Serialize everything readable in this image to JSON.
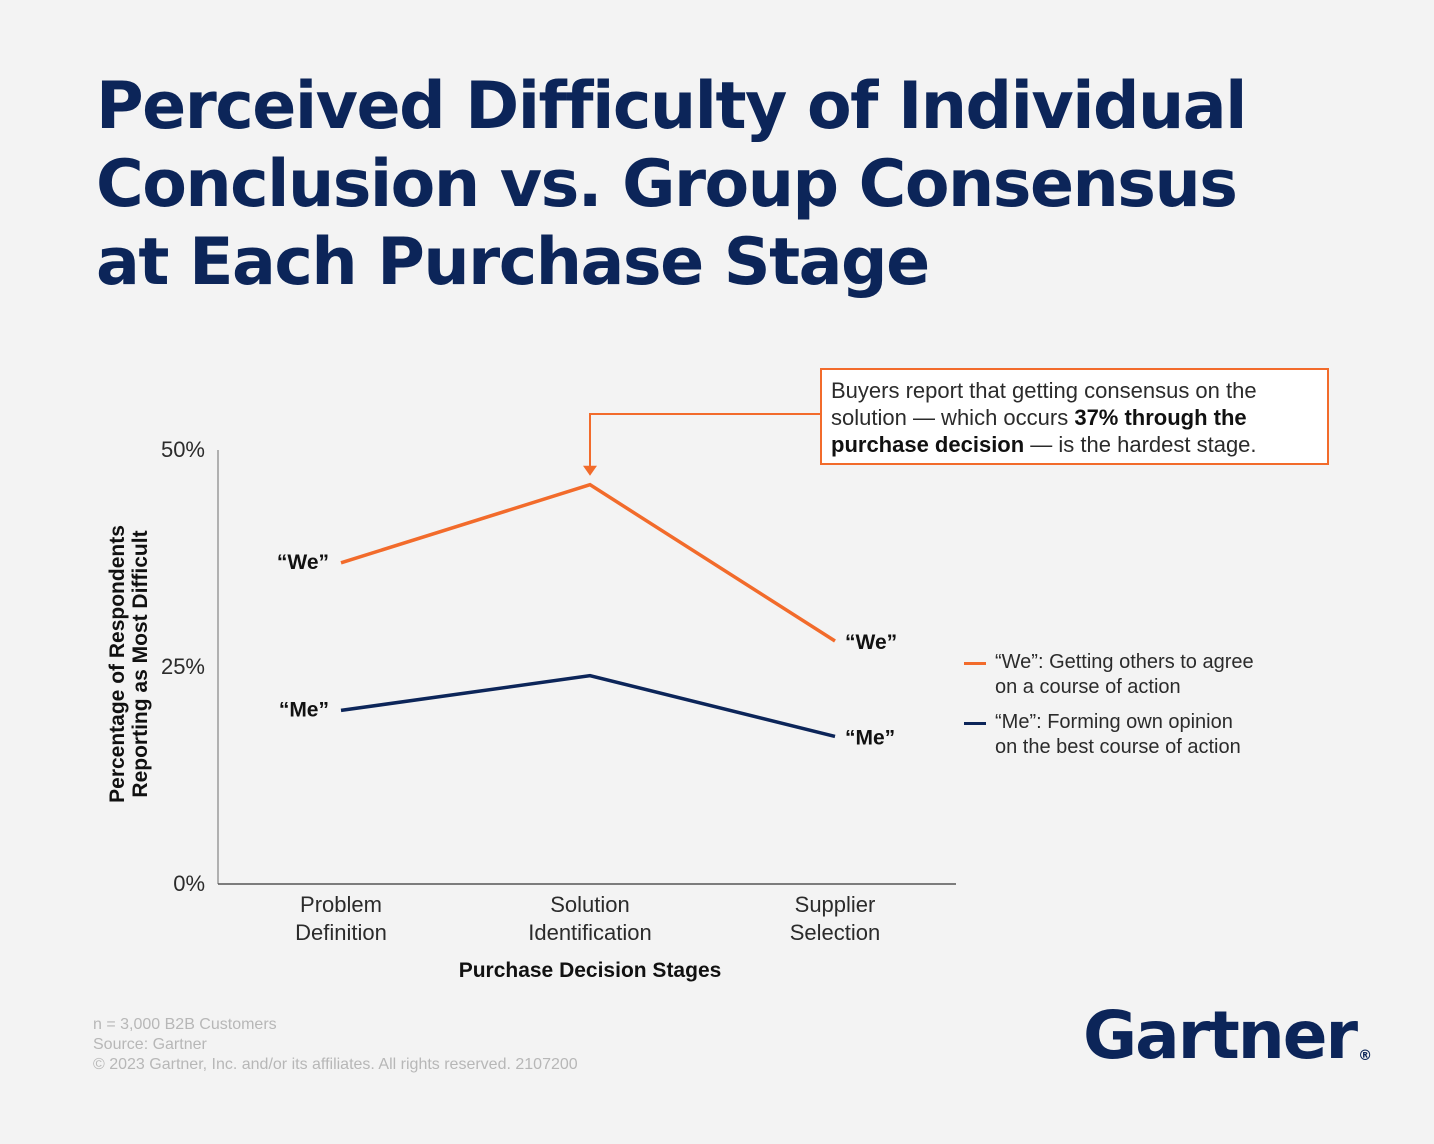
{
  "title_lines": [
    "Perceived Difficulty of Individual",
    "Conclusion vs. Group Consensus",
    "at Each Purchase Stage"
  ],
  "chart_data": {
    "type": "line",
    "title": "Perceived Difficulty of Individual Conclusion vs. Group Consensus at Each Purchase Stage",
    "categories": [
      [
        "Problem",
        "Definition"
      ],
      [
        "Solution",
        "Identification"
      ],
      [
        "Supplier",
        "Selection"
      ]
    ],
    "xlabel": "Purchase Decision Stages",
    "ylabel_lines": [
      "Percentage of Respondents",
      "Reporting as Most Difficult"
    ],
    "ylim": [
      0,
      50
    ],
    "yticks": [
      0,
      25,
      50
    ],
    "ytick_labels": [
      "0%",
      "25%",
      "50%"
    ],
    "series": [
      {
        "name": "We",
        "color": "#f26b2b",
        "values": [
          37,
          46,
          28
        ],
        "start_label": "“We”",
        "end_label": "“We”"
      },
      {
        "name": "Me",
        "color": "#0c2559",
        "values": [
          20,
          24,
          17
        ],
        "start_label": "“Me”",
        "end_label": "“Me”"
      }
    ],
    "legend": {
      "position": "right",
      "items": [
        {
          "color": "#f26b2b",
          "lines": [
            "“We”: Getting others to agree",
            "on a course of action"
          ]
        },
        {
          "color": "#0c2559",
          "lines": [
            "“Me”: Forming own opinion",
            "on the best course of action"
          ]
        }
      ]
    },
    "annotation": {
      "target_category": 1,
      "target_series": 0,
      "text_before": "Buyers report that getting consensus on the solution — which occurs ",
      "text_bold": "37% through the purchase decision",
      "text_after": " — is the hardest stage."
    }
  },
  "footer": {
    "lines": [
      "n = 3,000 B2B Customers",
      "Source: Gartner",
      "© 2023 Gartner, Inc. and/or its affiliates. All rights reserved. 2107200"
    ]
  },
  "logo": {
    "text": "Gartner",
    "mark": "®"
  }
}
